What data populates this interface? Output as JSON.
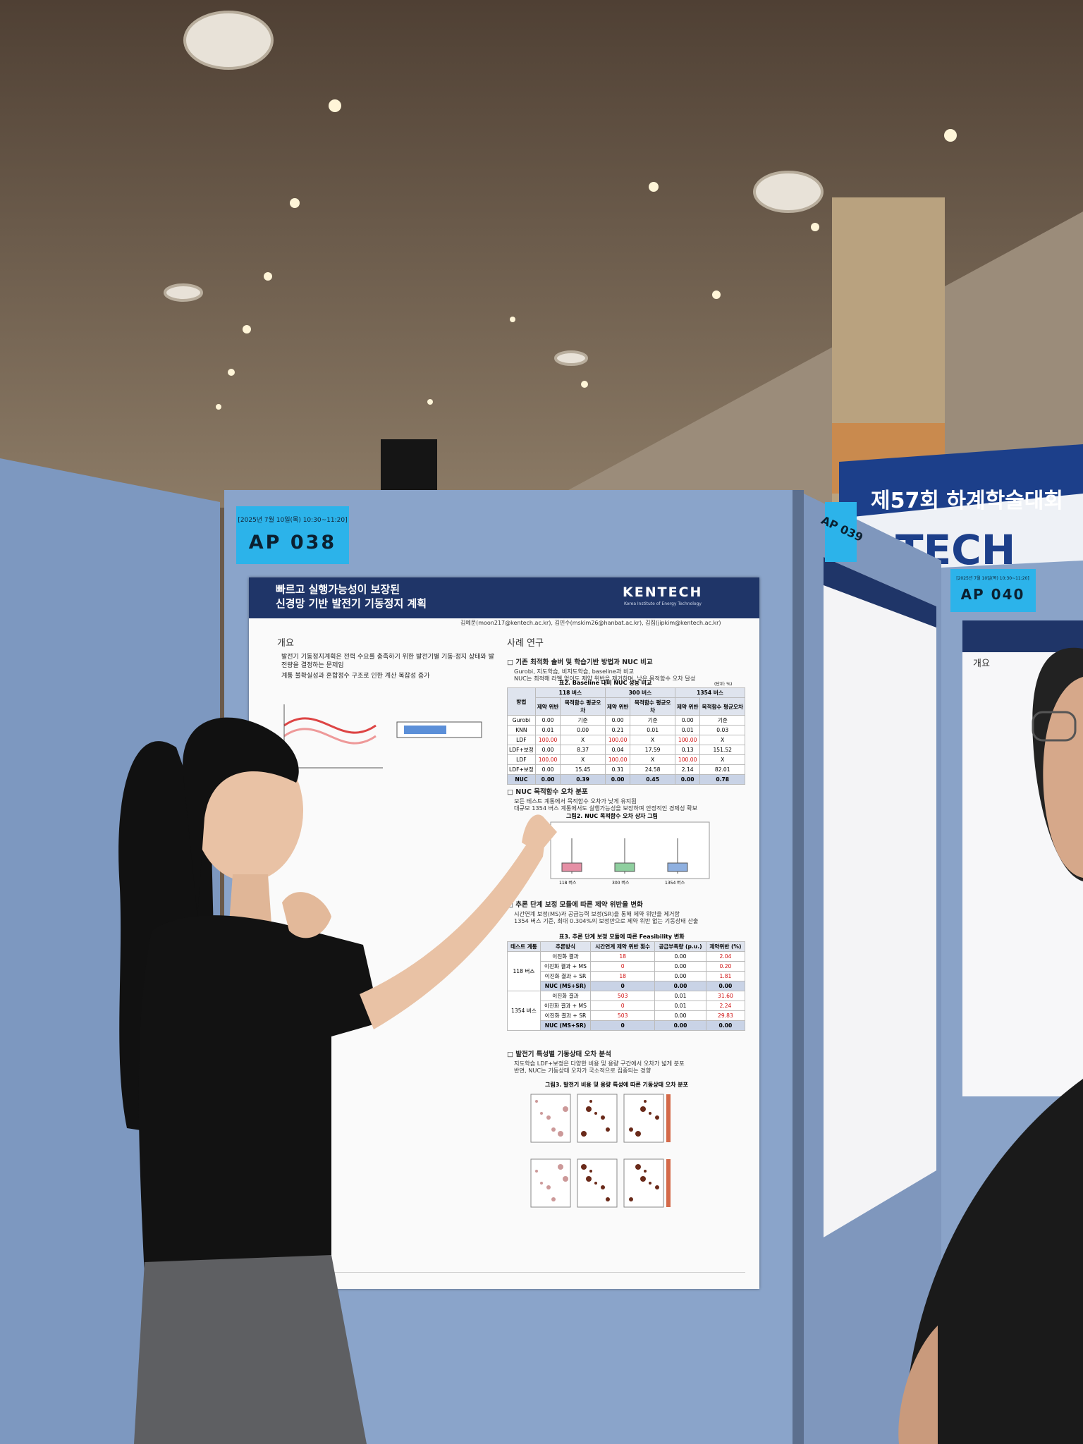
{
  "booth_label": {
    "time": "[2025년 7월 10일(목) 10:30~11:20]",
    "code": "AP 038"
  },
  "poster": {
    "title": [
      "빠르고 실행가능성이 보장된",
      "신경망 기반 발전기 기동정지 계획"
    ],
    "logo": "KENTECH",
    "logo_sub": "Korea Institute of Energy Technology",
    "authors": "김예문(moon217@kentech.ac.kr), 김민수(mskim26@hanbat.ac.kr), 김집(jipkim@kentech.ac.kr)",
    "overview": {
      "heading": "개요",
      "bullets": [
        "발전기 기동정지계획은 전력 수요를 충족하기 위한 발전기별 기동·정지 상태와 발전량을 결정하는 문제임",
        "계통 불확실성과 혼합정수 구조로 인한 계산 복잡성 증가"
      ]
    },
    "case_study": {
      "heading": "사례 연구",
      "sections": [
        {
          "heading": "□ 기존 최적화 솔버 및 학습기반 방법과 NUC 비교",
          "bullets": [
            "Gurobi, 지도학습, 비지도학습, baseline과 비교",
            "NUC는 최적해 라벨 없이도 제약 위반을 제거하며, 낮은 목적함수 오차 달성"
          ]
        },
        {
          "heading": "□ NUC 목적함수 오차 분포",
          "bullets": [
            "모든 테스트 계통에서 목적함수 오차가 낮게 유지됨",
            "대규모 1354 버스 계통에서도 실행가능성을 보장하며 안정적인 경제성 확보"
          ]
        },
        {
          "heading": "□ 추론 단계 보정 모듈에 따른 제약 위반율 변화",
          "bullets": [
            "시간연계 보정(MS)과 공급능력 보정(SR)을 통해 제약 위반을 제거함",
            "1354 버스 기준, 최대 0.304%의 보정만으로 제약 위반 없는 기동상태 산출"
          ]
        },
        {
          "heading": "□ 발전기 특성별 기동상태 오차 분석",
          "bullets": [
            "지도학습 LDF+보정은 다양한 비용 및 용량 구간에서 오차가 넓게 분포",
            "반면, NUC는 기동상태 오차가 국소적으로 집중되는 경향"
          ]
        }
      ]
    },
    "table2": {
      "caption": "표2. Baseline 대비 NUC 성능 비교",
      "unit": "(단위: %)",
      "method_header": "방법",
      "groups": [
        "118 버스",
        "300 버스",
        "1354 버스"
      ],
      "subheaders": [
        "제약 위반",
        "목적함수 평균오차"
      ],
      "rows": [
        [
          "Gurobi",
          "0.00",
          "기준",
          "0.00",
          "기준",
          "0.00",
          "기준"
        ],
        [
          "KNN",
          "0.01",
          "0.00",
          "0.21",
          "0.01",
          "0.01",
          "0.03"
        ],
        [
          "LDF",
          "100.00",
          "X",
          "100.00",
          "X",
          "100.00",
          "X"
        ],
        [
          "LDF+보정",
          "0.00",
          "8.37",
          "0.04",
          "17.59",
          "0.13",
          "151.52"
        ],
        [
          "LDF",
          "100.00",
          "X",
          "100.00",
          "X",
          "100.00",
          "X"
        ],
        [
          "LDF+보정",
          "0.00",
          "15.45",
          "0.31",
          "24.58",
          "2.14",
          "82.01"
        ],
        [
          "NUC",
          "0.00",
          "0.39",
          "0.00",
          "0.45",
          "0.00",
          "0.78"
        ]
      ]
    },
    "figure2": {
      "caption": "그림2. NUC 목적함수 오차 상자 그림",
      "groups": [
        "118 버스",
        "300 버스",
        "1354 버스"
      ]
    },
    "table3": {
      "caption": "표3. 추론 단계 보정 모듈에 따른 Feasibility 변화",
      "headers": [
        "테스트 계통",
        "추론방식",
        "시간연계 제약 위반 횟수",
        "공급부족량 (p.u.)",
        "제약위반 (%)"
      ],
      "groups": [
        {
          "system": "118 버스",
          "rows": [
            [
              "이진화 결과",
              "18",
              "0.00",
              "2.04"
            ],
            [
              "이진화 결과 + MS",
              "0",
              "0.00",
              "0.20"
            ],
            [
              "이진화 결과 + SR",
              "18",
              "0.00",
              "1.81"
            ],
            [
              "NUC (MS+SR)",
              "0",
              "0.00",
              "0.00"
            ]
          ]
        },
        {
          "system": "1354 버스",
          "rows": [
            [
              "이진화 결과",
              "503",
              "0.01",
              "31.60"
            ],
            [
              "이진화 결과 + MS",
              "0",
              "0.01",
              "2.24"
            ],
            [
              "이진화 결과 + SR",
              "503",
              "0.00",
              "29.83"
            ],
            [
              "NUC (MS+SR)",
              "0",
              "0.00",
              "0.00"
            ]
          ]
        }
      ]
    },
    "figure3": {
      "caption": "그림3. 발전기 비용 및 용량 특성에 따른 기동상태 오차 분포"
    }
  },
  "neighbors": [
    {
      "code": "AP 039"
    },
    {
      "code": "AP 040",
      "time": "[2025년 7월 10일(목) 10:30~11:20]",
      "heading": "개요"
    }
  ],
  "banner": {
    "text": "제57회 하계학술대회",
    "text2": "TECH"
  }
}
